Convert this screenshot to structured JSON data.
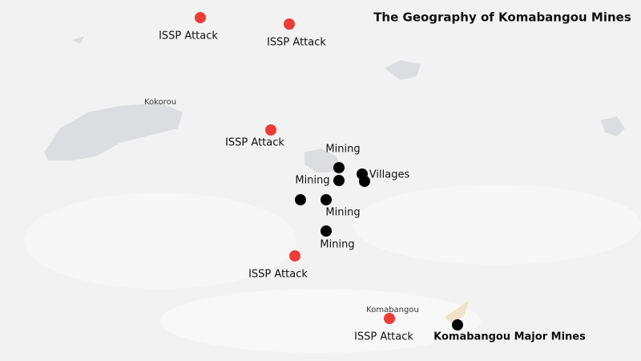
{
  "title": "The Geography of Komabangou Mines",
  "places": [
    "Kokorou",
    "Komabangou"
  ],
  "attack_labels": [
    "ISSP Attack",
    "ISSP Attack",
    "ISSP Attack",
    "ISSP Attack",
    "ISSP Attack"
  ],
  "site_labels": [
    "Mining",
    "Mining",
    "Villages",
    "Mining",
    "Mining",
    "Komabangou Major Mines"
  ]
}
